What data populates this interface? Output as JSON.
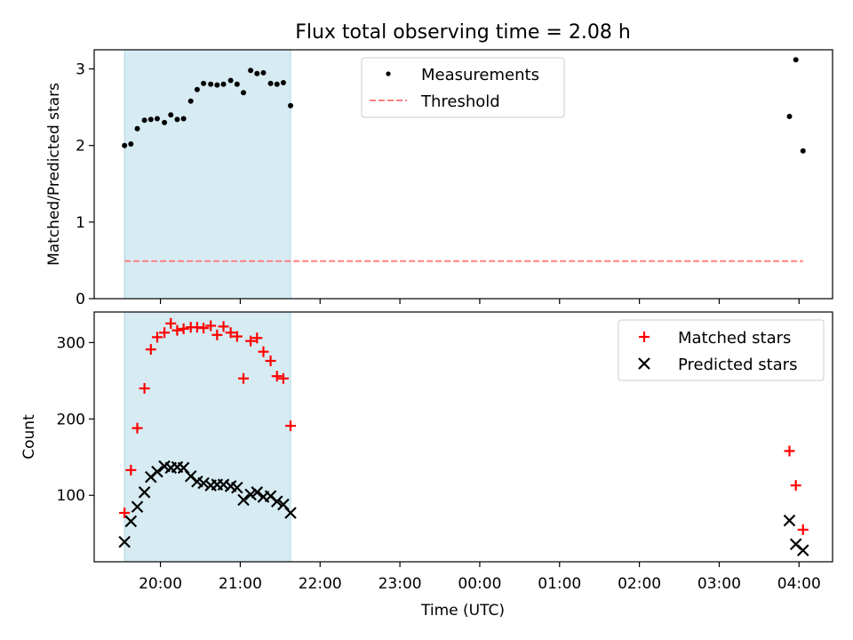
{
  "chart_data": {
    "type": "scatter",
    "title": "Flux total observing time = 2.08 h",
    "xlabel": "Time (UTC)",
    "x_tick_labels": [
      "20:00",
      "21:00",
      "22:00",
      "23:00",
      "00:00",
      "01:00",
      "02:00",
      "03:00",
      "04:00"
    ],
    "x_tick_hours": [
      20,
      21,
      22,
      23,
      24,
      25,
      26,
      27,
      28
    ],
    "xlim_hours": [
      19.17,
      28.42
    ],
    "shaded_region_hours": [
      19.55,
      21.63
    ],
    "shaded_color": "#add8e6",
    "panels": [
      {
        "ylabel": "Matched/Predicted stars",
        "ylim": [
          0,
          3.25
        ],
        "y_ticks": [
          0,
          1,
          2,
          3
        ],
        "legend": {
          "placement": "upper-center",
          "entries": [
            "Measurements",
            "Threshold"
          ]
        },
        "threshold": {
          "name": "Threshold",
          "value": 0.49,
          "x_range_hours": [
            19.55,
            28.05
          ],
          "color": "#ff8080"
        },
        "series": [
          {
            "name": "Measurements",
            "marker": "dot",
            "color": "#000000",
            "points": [
              [
                19.55,
                2.0
              ],
              [
                19.63,
                2.02
              ],
              [
                19.71,
                2.22
              ],
              [
                19.8,
                2.33
              ],
              [
                19.88,
                2.34
              ],
              [
                19.96,
                2.35
              ],
              [
                20.05,
                2.3
              ],
              [
                20.13,
                2.4
              ],
              [
                20.21,
                2.34
              ],
              [
                20.29,
                2.35
              ],
              [
                20.38,
                2.58
              ],
              [
                20.46,
                2.73
              ],
              [
                20.54,
                2.81
              ],
              [
                20.63,
                2.8
              ],
              [
                20.71,
                2.79
              ],
              [
                20.79,
                2.8
              ],
              [
                20.88,
                2.85
              ],
              [
                20.96,
                2.8
              ],
              [
                21.04,
                2.69
              ],
              [
                21.13,
                2.98
              ],
              [
                21.21,
                2.94
              ],
              [
                21.29,
                2.95
              ],
              [
                21.38,
                2.81
              ],
              [
                21.46,
                2.8
              ],
              [
                21.54,
                2.82
              ],
              [
                21.63,
                2.52
              ],
              [
                27.88,
                2.38
              ],
              [
                27.96,
                3.12
              ],
              [
                28.05,
                1.93
              ]
            ]
          }
        ]
      },
      {
        "ylabel": "Count",
        "ylim": [
          13,
          340
        ],
        "y_ticks": [
          100,
          200,
          300
        ],
        "legend": {
          "placement": "upper-right",
          "entries": [
            "Matched stars",
            "Predicted stars"
          ]
        },
        "series": [
          {
            "name": "Matched stars",
            "marker": "plus",
            "color": "#ff0000",
            "points": [
              [
                19.55,
                77
              ],
              [
                19.63,
                133
              ],
              [
                19.71,
                188
              ],
              [
                19.8,
                240
              ],
              [
                19.88,
                291
              ],
              [
                19.96,
                307
              ],
              [
                20.05,
                313
              ],
              [
                20.13,
                325
              ],
              [
                20.21,
                316
              ],
              [
                20.29,
                318
              ],
              [
                20.38,
                320
              ],
              [
                20.46,
                320
              ],
              [
                20.54,
                319
              ],
              [
                20.63,
                322
              ],
              [
                20.71,
                310
              ],
              [
                20.79,
                321
              ],
              [
                20.88,
                313
              ],
              [
                20.96,
                308
              ],
              [
                21.04,
                253
              ],
              [
                21.13,
                302
              ],
              [
                21.21,
                306
              ],
              [
                21.29,
                288
              ],
              [
                21.38,
                276
              ],
              [
                21.46,
                256
              ],
              [
                21.54,
                253
              ],
              [
                21.63,
                191
              ],
              [
                27.88,
                158
              ],
              [
                27.96,
                113
              ],
              [
                28.05,
                55
              ]
            ]
          },
          {
            "name": "Predicted stars",
            "marker": "x",
            "color": "#000000",
            "points": [
              [
                19.55,
                39
              ],
              [
                19.63,
                66
              ],
              [
                19.71,
                85
              ],
              [
                19.8,
                104
              ],
              [
                19.88,
                124
              ],
              [
                19.96,
                131
              ],
              [
                20.05,
                138
              ],
              [
                20.13,
                136
              ],
              [
                20.21,
                137
              ],
              [
                20.29,
                136
              ],
              [
                20.38,
                125
              ],
              [
                20.46,
                118
              ],
              [
                20.54,
                116
              ],
              [
                20.63,
                113
              ],
              [
                20.71,
                114
              ],
              [
                20.79,
                114
              ],
              [
                20.88,
                112
              ],
              [
                20.96,
                110
              ],
              [
                21.04,
                94
              ],
              [
                21.13,
                101
              ],
              [
                21.21,
                104
              ],
              [
                21.29,
                98
              ],
              [
                21.38,
                99
              ],
              [
                21.46,
                92
              ],
              [
                21.54,
                88
              ],
              [
                21.63,
                77
              ],
              [
                27.88,
                67
              ],
              [
                27.96,
                36
              ],
              [
                28.05,
                28
              ]
            ]
          }
        ]
      }
    ]
  }
}
